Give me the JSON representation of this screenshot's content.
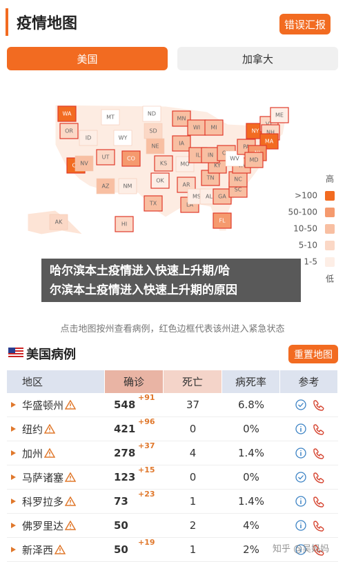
{
  "header": {
    "title": "疫情地图",
    "report_button": "错误汇报"
  },
  "tabs": [
    "美国",
    "加拿大"
  ],
  "map": {
    "states": [
      "WA",
      "OR",
      "CA",
      "NV",
      "ID",
      "MT",
      "WY",
      "UT",
      "AZ",
      "NM",
      "CO",
      "ND",
      "SD",
      "NE",
      "KS",
      "OK",
      "TX",
      "MN",
      "IA",
      "MO",
      "AR",
      "LA",
      "WI",
      "IL",
      "MS",
      "AL",
      "TN",
      "KY",
      "IN",
      "OH",
      "MI",
      "GA",
      "FL",
      "SC",
      "NC",
      "VA",
      "WV",
      "PA",
      "NY",
      "VT",
      "NH",
      "ME",
      "MA",
      "NJ",
      "MD",
      "AK",
      "HI"
    ],
    "legend": {
      "high": "高",
      "levels": [
        ">100",
        "50-100",
        "10-50",
        "5-10",
        "1-5"
      ],
      "low": "低"
    }
  },
  "overlay_caption": [
    "哈尔滨本土疫情进入快速上升期/哈",
    "尔滨本土疫情进入快速上升期的原因"
  ],
  "instruction": "点击地图按州查看病例，红色边框代表该州进入紧急状态",
  "cases": {
    "title": "美国病例",
    "reset_button": "重置地图",
    "columns": [
      "地区",
      "确诊",
      "死亡",
      "病死率",
      "参考"
    ],
    "rows": [
      [
        "华盛顿州",
        "548",
        "+91",
        "37",
        "6.8%"
      ],
      [
        "纽约",
        "421",
        "+96",
        "0",
        "0%"
      ],
      [
        "加州",
        "278",
        "+37",
        "4",
        "1.4%"
      ],
      [
        "马萨诸塞",
        "123",
        "+15",
        "0",
        "0%"
      ],
      [
        "科罗拉多",
        "73",
        "+23",
        "1",
        "1.4%"
      ],
      [
        "佛罗里达",
        "50",
        null,
        "2",
        "4%"
      ],
      [
        "新泽西",
        "50",
        "+19",
        "1",
        "2%"
      ]
    ]
  },
  "watermark": "知乎 @吴妈妈"
}
